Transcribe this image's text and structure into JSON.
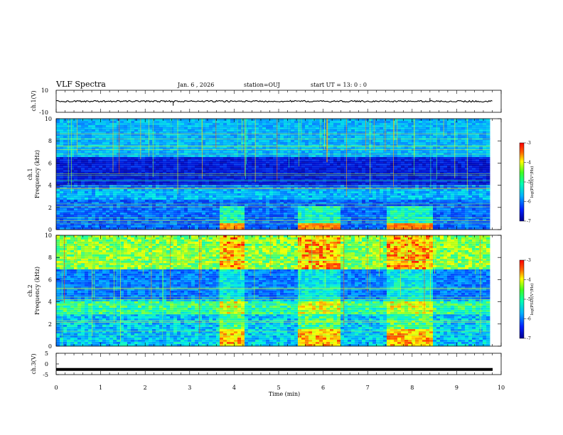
{
  "header": {
    "title": "VLF Spectra",
    "date": "Jan. 6 , 2026",
    "station": "station=OUJ",
    "start": "start UT = 13: 0 : 0"
  },
  "chart_data": [
    {
      "type": "line",
      "name": "ch1-waveform",
      "ylabel": "ch.1(V)",
      "ylim": [
        -10,
        10
      ],
      "yticks": [
        "10",
        "-10"
      ],
      "xlim": [
        0,
        10
      ],
      "baseline": 0,
      "spikes": [
        {
          "x": 2.63,
          "y": -4
        },
        {
          "x": 8.4,
          "y": 3
        }
      ]
    },
    {
      "type": "heatmap",
      "name": "ch1-spectrogram",
      "ylabel_line1": "ch.1",
      "ylabel_line2": "Frequency (kHz)",
      "ylim": [
        0,
        10
      ],
      "yticks": [
        "0",
        "2",
        "4",
        "6",
        "8",
        "10"
      ],
      "xlim": [
        0,
        10
      ],
      "colorbar": {
        "label": "log(PSD)(V²/Hz)",
        "range": [
          -7,
          -3
        ],
        "ticks": [
          "-3",
          "-4",
          "-5",
          "-6",
          "-7"
        ]
      },
      "activity_segments": [
        [
          3.7,
          4.2
        ],
        [
          5.4,
          6.35
        ],
        [
          7.4,
          8.5
        ]
      ]
    },
    {
      "type": "heatmap",
      "name": "ch2-spectrogram",
      "ylabel_line1": "ch.2",
      "ylabel_line2": "Frequency (kHz)",
      "ylim": [
        0,
        10
      ],
      "yticks": [
        "0",
        "2",
        "4",
        "6",
        "8",
        "10"
      ],
      "xlim": [
        0,
        10
      ],
      "colorbar": {
        "label": "log(PSD)(V²/Hz)",
        "range": [
          -7,
          -3
        ],
        "ticks": [
          "-3",
          "-4",
          "-5",
          "-6",
          "-7"
        ]
      },
      "activity_segments": [
        [
          3.7,
          4.2
        ],
        [
          5.4,
          6.35
        ],
        [
          7.4,
          8.5
        ]
      ]
    },
    {
      "type": "line",
      "name": "ch3-waveform",
      "ylabel": "ch.3(V)",
      "ylim": [
        -5,
        5
      ],
      "yticks": [
        "5",
        "0",
        "-5"
      ],
      "xlim": [
        0,
        10
      ],
      "baseline": -2.6
    }
  ],
  "xaxis": {
    "label": "Time (min)",
    "ticks": [
      "0",
      "1",
      "2",
      "3",
      "4",
      "5",
      "6",
      "7",
      "8",
      "9",
      "10"
    ]
  }
}
